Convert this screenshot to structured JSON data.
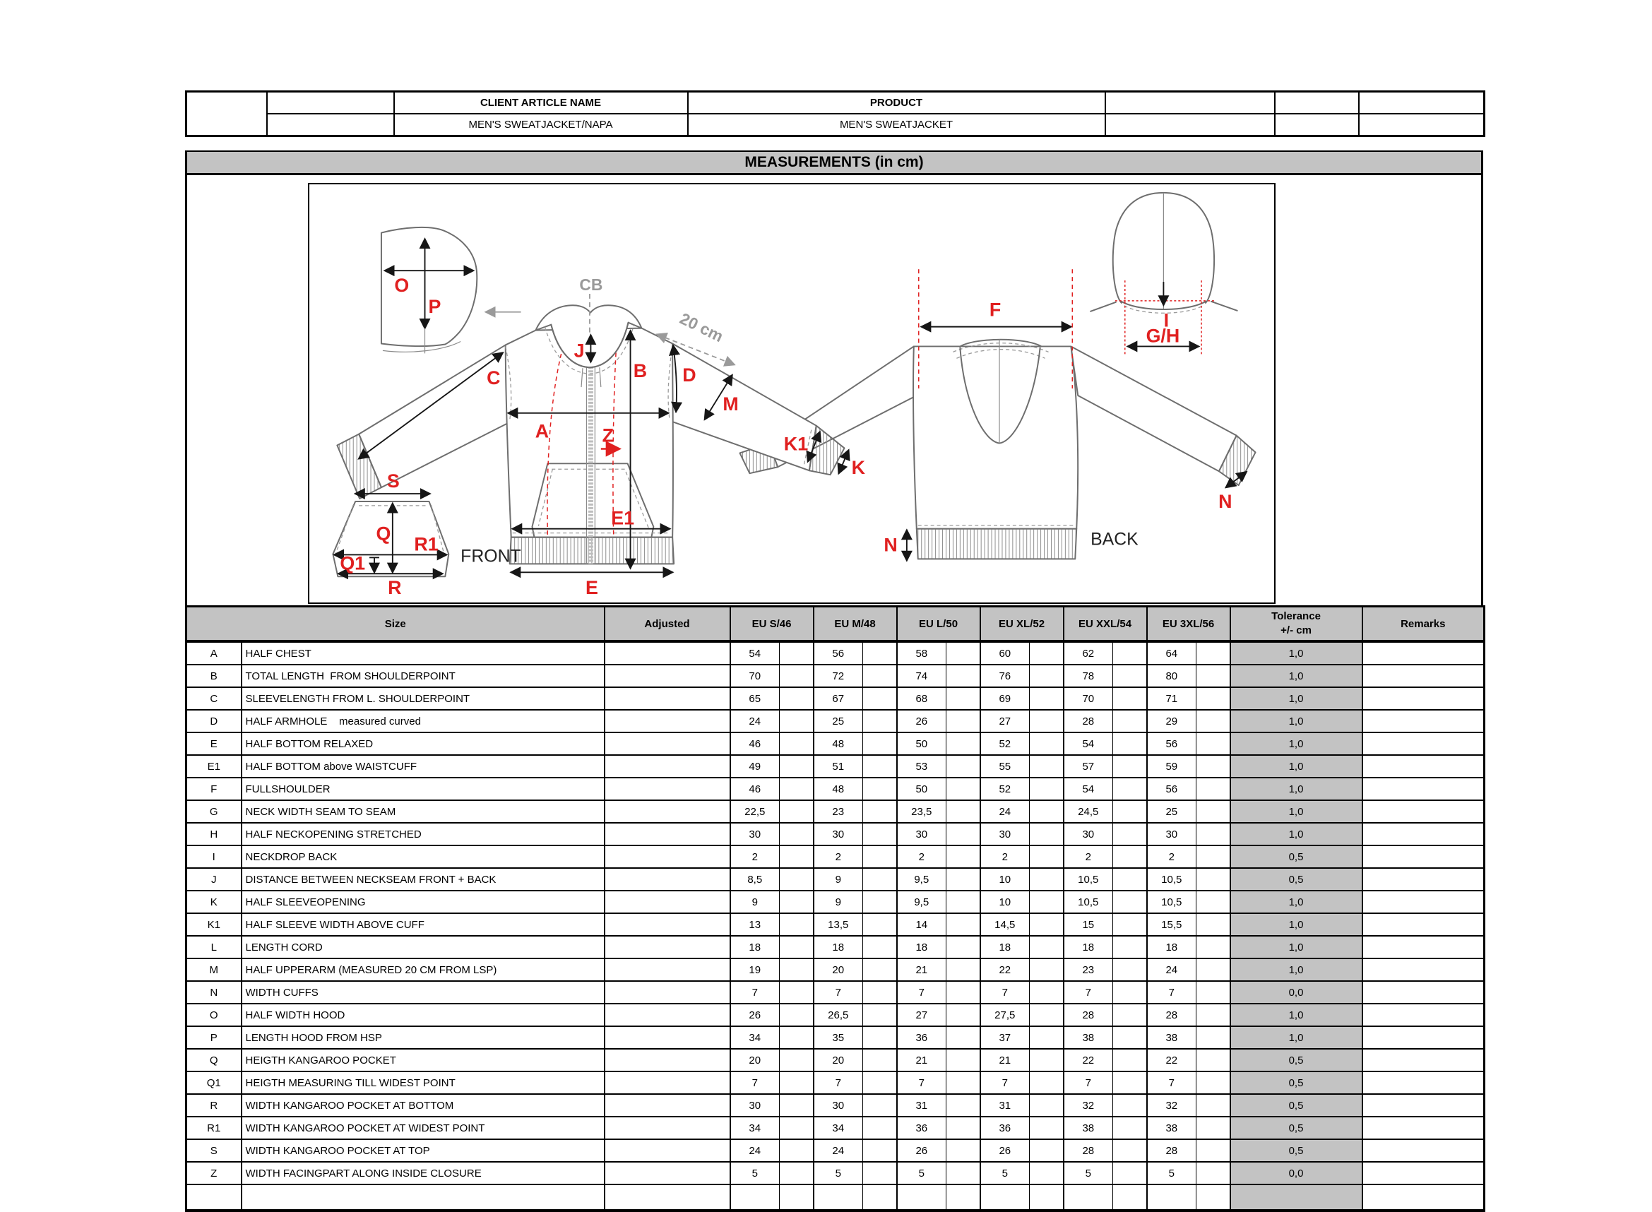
{
  "top_table": {
    "headers": {
      "client_article_name": "CLIENT ARTICLE NAME",
      "product": "PRODUCT"
    },
    "values": {
      "client_article_name": "MEN'S SWEATJACKET/NAPA",
      "product": "MEN'S SWEATJACKET"
    }
  },
  "title_bar": "MEASUREMENTS (in cm)",
  "drawing": {
    "labels": {
      "O": "O",
      "P": "P",
      "C": "C",
      "J": "J",
      "B": "B",
      "D": "D",
      "M": "M",
      "A": "A",
      "Z": "Z",
      "E1": "E1",
      "E": "E",
      "S": "S",
      "Q": "Q",
      "Q1": "Q1",
      "R1": "R1",
      "R": "R",
      "F": "F",
      "I": "I",
      "GH": "G/H",
      "K1": "K1",
      "K": "K",
      "N": "N"
    },
    "annotations": {
      "cb": "CB",
      "cm20": "20 cm",
      "front": "FRONT",
      "back": "BACK"
    }
  },
  "table": {
    "headers": {
      "size": "Size",
      "adjusted": "Adjusted",
      "sizes": [
        "EU S/46",
        "EU M/48",
        "EU L/50",
        "EU XL/52",
        "EU XXL/54",
        "EU 3XL/56"
      ],
      "tolerance_line1": "Tolerance",
      "tolerance_line2": "+/- cm",
      "remarks": "Remarks"
    },
    "rows": [
      {
        "code": "A",
        "desc": "HALF CHEST",
        "values": [
          "54",
          "56",
          "58",
          "60",
          "62",
          "64"
        ],
        "tol": "1,0"
      },
      {
        "code": "B",
        "desc": "TOTAL LENGTH  FROM SHOULDERPOINT",
        "values": [
          "70",
          "72",
          "74",
          "76",
          "78",
          "80"
        ],
        "tol": "1,0"
      },
      {
        "code": "C",
        "desc": "SLEEVELENGTH FROM L. SHOULDERPOINT",
        "values": [
          "65",
          "67",
          "68",
          "69",
          "70",
          "71"
        ],
        "tol": "1,0"
      },
      {
        "code": "D",
        "desc": "HALF ARMHOLE    measured curved",
        "values": [
          "24",
          "25",
          "26",
          "27",
          "28",
          "29"
        ],
        "tol": "1,0"
      },
      {
        "code": "E",
        "desc": "HALF BOTTOM RELAXED",
        "values": [
          "46",
          "48",
          "50",
          "52",
          "54",
          "56"
        ],
        "tol": "1,0"
      },
      {
        "code": "E1",
        "desc": "HALF BOTTOM above WAISTCUFF",
        "values": [
          "49",
          "51",
          "53",
          "55",
          "57",
          "59"
        ],
        "tol": "1,0"
      },
      {
        "code": "F",
        "desc": "FULLSHOULDER",
        "values": [
          "46",
          "48",
          "50",
          "52",
          "54",
          "56"
        ],
        "tol": "1,0"
      },
      {
        "code": "G",
        "desc": "NECK WIDTH SEAM TO SEAM",
        "values": [
          "22,5",
          "23",
          "23,5",
          "24",
          "24,5",
          "25"
        ],
        "tol": "1,0"
      },
      {
        "code": "H",
        "desc": "HALF NECKOPENING STRETCHED",
        "values": [
          "30",
          "30",
          "30",
          "30",
          "30",
          "30"
        ],
        "tol": "1,0"
      },
      {
        "code": "I",
        "desc": "NECKDROP BACK",
        "values": [
          "2",
          "2",
          "2",
          "2",
          "2",
          "2"
        ],
        "tol": "0,5"
      },
      {
        "code": "J",
        "desc": "DISTANCE BETWEEN NECKSEAM FRONT + BACK",
        "values": [
          "8,5",
          "9",
          "9,5",
          "10",
          "10,5",
          "10,5"
        ],
        "tol": "0,5"
      },
      {
        "code": "K",
        "desc": "HALF SLEEVEOPENING",
        "values": [
          "9",
          "9",
          "9,5",
          "10",
          "10,5",
          "10,5"
        ],
        "tol": "1,0"
      },
      {
        "code": "K1",
        "desc": "HALF SLEEVE WIDTH ABOVE CUFF",
        "values": [
          "13",
          "13,5",
          "14",
          "14,5",
          "15",
          "15,5"
        ],
        "tol": "1,0"
      },
      {
        "code": "L",
        "desc": "LENGTH CORD",
        "values": [
          "18",
          "18",
          "18",
          "18",
          "18",
          "18"
        ],
        "tol": "1,0"
      },
      {
        "code": "M",
        "desc": "HALF UPPERARM (MEASURED 20 CM FROM LSP)",
        "values": [
          "19",
          "20",
          "21",
          "22",
          "23",
          "24"
        ],
        "tol": "1,0"
      },
      {
        "code": "N",
        "desc": "WIDTH CUFFS",
        "values": [
          "7",
          "7",
          "7",
          "7",
          "7",
          "7"
        ],
        "tol": "0,0"
      },
      {
        "code": "O",
        "desc": "HALF WIDTH HOOD",
        "values": [
          "26",
          "26,5",
          "27",
          "27,5",
          "28",
          "28"
        ],
        "tol": "1,0"
      },
      {
        "code": "P",
        "desc": "LENGTH HOOD FROM HSP",
        "values": [
          "34",
          "35",
          "36",
          "37",
          "38",
          "38"
        ],
        "tol": "1,0"
      },
      {
        "code": "Q",
        "desc": "HEIGTH KANGAROO POCKET",
        "values": [
          "20",
          "20",
          "21",
          "21",
          "22",
          "22"
        ],
        "tol": "0,5"
      },
      {
        "code": "Q1",
        "desc": "HEIGTH MEASURING TILL WIDEST POINT",
        "values": [
          "7",
          "7",
          "7",
          "7",
          "7",
          "7"
        ],
        "tol": "0,5"
      },
      {
        "code": "R",
        "desc": "WIDTH KANGAROO POCKET AT BOTTOM",
        "values": [
          "30",
          "30",
          "31",
          "31",
          "32",
          "32"
        ],
        "tol": "0,5"
      },
      {
        "code": "R1",
        "desc": "WIDTH KANGAROO POCKET AT WIDEST POINT",
        "values": [
          "34",
          "34",
          "36",
          "36",
          "38",
          "38"
        ],
        "tol": "0,5"
      },
      {
        "code": "S",
        "desc": "WIDTH KANGAROO POCKET AT TOP",
        "values": [
          "24",
          "24",
          "26",
          "26",
          "28",
          "28"
        ],
        "tol": "0,5"
      },
      {
        "code": "Z",
        "desc": "WIDTH FACINGPART ALONG INSIDE CLOSURE",
        "values": [
          "5",
          "5",
          "5",
          "5",
          "5",
          "5"
        ],
        "tol": "0,0"
      }
    ]
  },
  "colors": {
    "accent_red": "#e02020",
    "header_gray": "#c3c3c3",
    "line_gray": "#6e6e6e"
  }
}
